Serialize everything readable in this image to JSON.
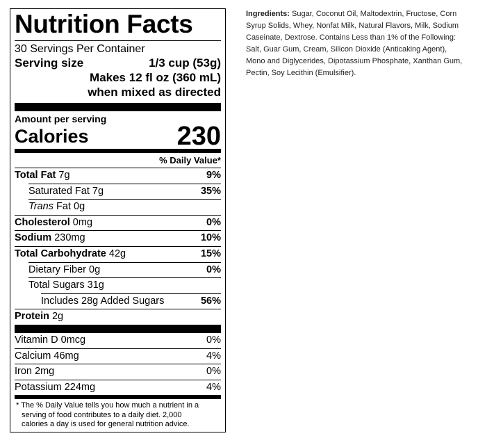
{
  "label": {
    "title": "Nutrition Facts",
    "servings": "30 Servings Per Container",
    "serving_size_label": "Serving size",
    "serving_size": "1/3 cup (53g)",
    "makes": [
      "Makes 12 fl oz (360 mL)",
      "when mixed as directed"
    ],
    "amount_per_serving": "Amount per serving",
    "calories_label": "Calories",
    "calories": 230,
    "dv_header": "% Daily Value*",
    "nutrients": [
      {
        "name": "Total Fat",
        "amount": "7g",
        "dv": "9%",
        "bold": true,
        "indent": 0
      },
      {
        "name": "Saturated Fat",
        "amount": "7g",
        "dv": "35%",
        "bold": false,
        "indent": 1
      },
      {
        "name_italic": "Trans",
        "name": "Fat",
        "amount": "0g",
        "bold": false,
        "indent": 1
      },
      {
        "name": "Cholesterol",
        "amount": "0mg",
        "dv": "0%",
        "bold": true,
        "indent": 0
      },
      {
        "name": "Sodium",
        "amount": "230mg",
        "dv": "10%",
        "bold": true,
        "indent": 0
      },
      {
        "name": "Total Carbohydrate",
        "amount": "42g",
        "dv": "15%",
        "bold": true,
        "indent": 0
      },
      {
        "name": "Dietary Fiber",
        "amount": "0g",
        "dv": "0%",
        "bold": false,
        "indent": 1
      },
      {
        "name": "Total Sugars",
        "amount": "31g",
        "bold": false,
        "indent": 1
      },
      {
        "name": "Includes 28g Added Sugars",
        "dv": "56%",
        "bold": false,
        "indent": 2
      },
      {
        "name": "Protein",
        "amount": "2g",
        "bold": true,
        "indent": 0
      }
    ],
    "vitamins": [
      {
        "name": "Vitamin D",
        "amount": "0mcg",
        "dv": "0%"
      },
      {
        "name": "Calcium",
        "amount": "46mg",
        "dv": "4%"
      },
      {
        "name": "Iron",
        "amount": "2mg",
        "dv": "0%"
      },
      {
        "name": "Potassium",
        "amount": "224mg",
        "dv": "4%"
      }
    ],
    "footnote": "* The % Daily Value tells you how much a nutrient in a serving of food contributes to a daily diet. 2,000 calories a day is used for general nutrition advice."
  },
  "ingredients": {
    "label": "Ingredients:",
    "text": "Sugar, Coconut Oil, Maltodextrin, Fructose, Corn Syrup Solids, Whey, Nonfat Milk, Natural Flavors, Milk, Sodium Caseinate, Dextrose. Contains Less than 1% of the Following: Salt, Guar Gum, Cream, Silicon Dioxide (Anticaking Agent), Mono and Diglycerides, Dipotassium Phosphate, Xanthan Gum, Pectin, Soy Lecithin (Emulsifier)."
  }
}
